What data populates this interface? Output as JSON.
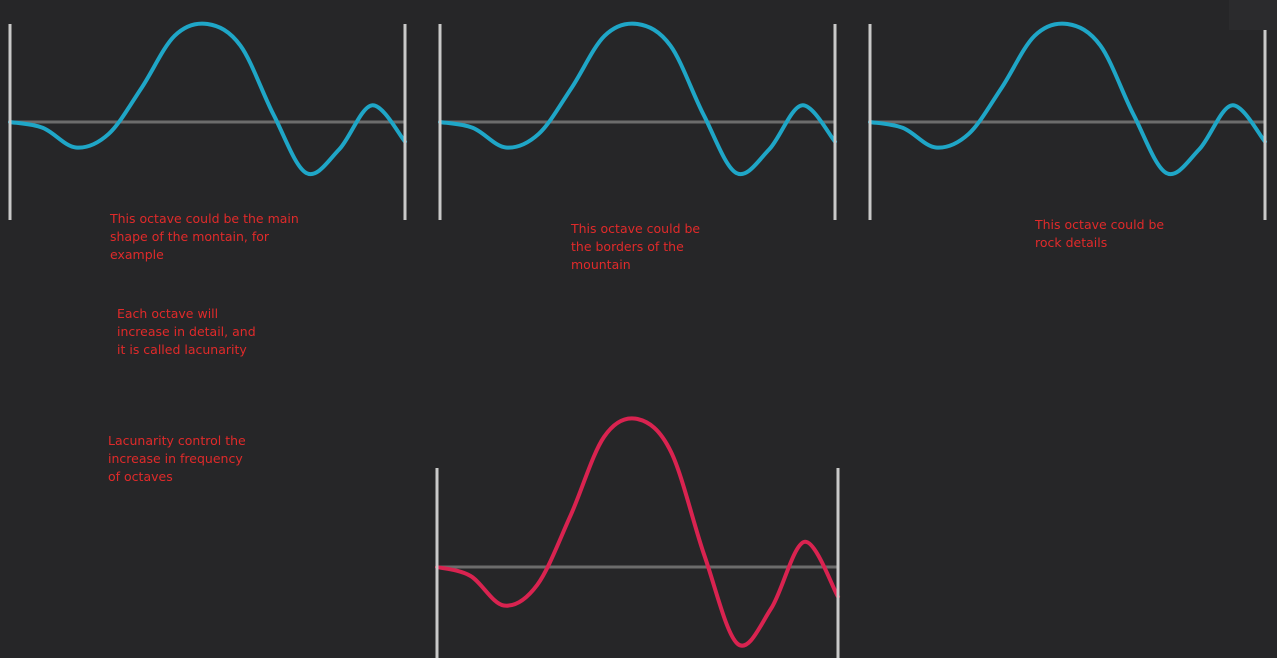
{
  "notes": {
    "main_shape": "This octave could be the main\nshape of the montain, for\nexample",
    "borders": "This octave could be\nthe borders of the\nmountain",
    "rock": "This octave could be\nrock details",
    "detail": "Each octave will\nincrease in detail, and\nit is called lacunarity",
    "lacunarity": "Lacunarity control the\nincrease in frequency\nof octaves"
  },
  "colors": {
    "background": "#262628",
    "octave_wave": "#1fa6c7",
    "combined_wave": "#d92350",
    "axis": "#6c6c6c",
    "frame": "#c9c9c9",
    "annotation": "#e02a2a"
  },
  "waveform_samples": [
    0,
    -0.06,
    -0.26,
    -0.12,
    0.35,
    0.88,
    1,
    0.78,
    0.08,
    -0.52,
    -0.28,
    0.17,
    -0.2
  ],
  "panels": [
    {
      "id": "octave-1",
      "wave": "octave_wave"
    },
    {
      "id": "octave-2",
      "wave": "octave_wave"
    },
    {
      "id": "octave-3",
      "wave": "octave_wave"
    },
    {
      "id": "combined",
      "wave": "combined_wave"
    }
  ]
}
